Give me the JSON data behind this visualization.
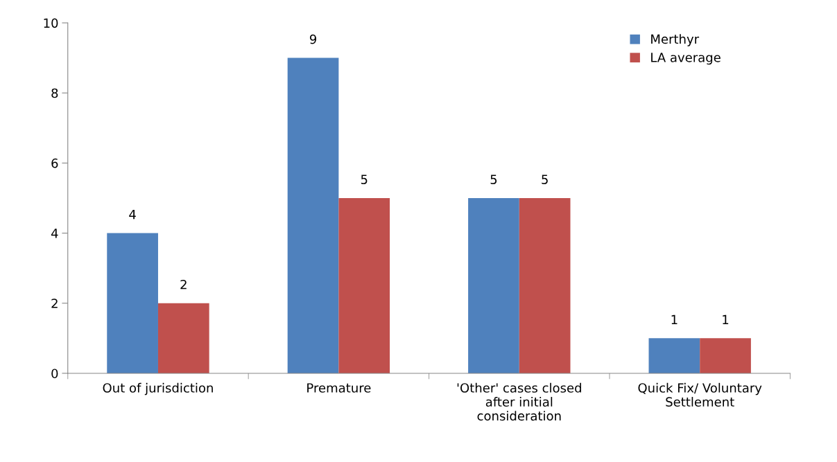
{
  "chart_data": {
    "type": "bar",
    "categories": [
      "Out of jurisdiction",
      "Premature",
      "'Other' cases closed\nafter initial\nconsideration",
      "Quick Fix/ Voluntary\nSettlement"
    ],
    "series": [
      {
        "name": "Merthyr",
        "color": "#4f81bd",
        "values": [
          4,
          9,
          5,
          1
        ]
      },
      {
        "name": "LA average",
        "color": "#c0504d",
        "values": [
          2,
          5,
          5,
          1
        ]
      }
    ],
    "ylim": [
      0,
      10
    ],
    "yticks": [
      0,
      2,
      4,
      6,
      8,
      10
    ],
    "data_labels": true,
    "grid": false,
    "legend": "top right"
  }
}
